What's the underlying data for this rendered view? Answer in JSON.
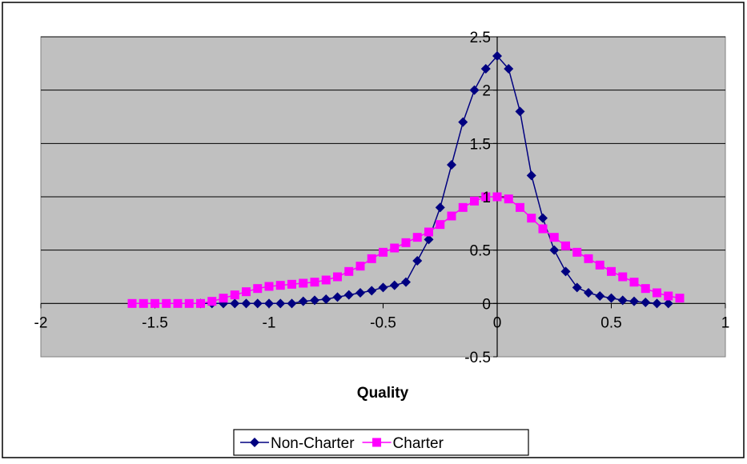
{
  "chart_data": {
    "type": "line",
    "title": "",
    "xlabel": "Quality",
    "ylabel": "",
    "xlim": [
      -2,
      1
    ],
    "ylim": [
      -0.5,
      2.5
    ],
    "x_ticks": [
      "-2",
      "-1.5",
      "-1",
      "-0.5",
      "0",
      "0.5",
      "1"
    ],
    "y_ticks": [
      "-0.5",
      "0",
      "0.5",
      "1",
      "1.5",
      "2",
      "2.5"
    ],
    "x_tick_values": [
      -2,
      -1.5,
      -1,
      -0.5,
      0,
      0.5,
      1
    ],
    "y_tick_values": [
      -0.5,
      0,
      0.5,
      1,
      1.5,
      2,
      2.5
    ],
    "grid": "horizontal major gridlines",
    "plot_background": "#C0C0C0",
    "legend_position": "bottom",
    "series": [
      {
        "name": "Non-Charter",
        "color": "#000080",
        "marker": "diamond",
        "x": [
          -1.3,
          -1.25,
          -1.2,
          -1.15,
          -1.1,
          -1.05,
          -1.0,
          -0.95,
          -0.9,
          -0.85,
          -0.8,
          -0.75,
          -0.7,
          -0.65,
          -0.6,
          -0.55,
          -0.5,
          -0.45,
          -0.4,
          -0.35,
          -0.3,
          -0.25,
          -0.2,
          -0.15,
          -0.1,
          -0.05,
          0.0,
          0.05,
          0.1,
          0.15,
          0.2,
          0.25,
          0.3,
          0.35,
          0.4,
          0.45,
          0.5,
          0.55,
          0.6,
          0.65,
          0.7,
          0.75
        ],
        "y": [
          0.0,
          0.0,
          0.0,
          0.0,
          0.0,
          0.0,
          0.0,
          0.0,
          0.0,
          0.02,
          0.03,
          0.04,
          0.06,
          0.08,
          0.1,
          0.12,
          0.15,
          0.17,
          0.2,
          0.4,
          0.6,
          0.9,
          1.3,
          1.7,
          2.0,
          2.2,
          2.32,
          2.2,
          1.8,
          1.2,
          0.8,
          0.5,
          0.3,
          0.15,
          0.1,
          0.07,
          0.05,
          0.03,
          0.02,
          0.01,
          0.0,
          0.0
        ]
      },
      {
        "name": "Charter",
        "color": "#FF00FF",
        "marker": "square",
        "x": [
          -1.6,
          -1.55,
          -1.5,
          -1.45,
          -1.4,
          -1.35,
          -1.3,
          -1.25,
          -1.2,
          -1.15,
          -1.1,
          -1.05,
          -1.0,
          -0.95,
          -0.9,
          -0.85,
          -0.8,
          -0.75,
          -0.7,
          -0.65,
          -0.6,
          -0.55,
          -0.5,
          -0.45,
          -0.4,
          -0.35,
          -0.3,
          -0.25,
          -0.2,
          -0.15,
          -0.1,
          -0.05,
          0.0,
          0.05,
          0.1,
          0.15,
          0.2,
          0.25,
          0.3,
          0.35,
          0.4,
          0.45,
          0.5,
          0.55,
          0.6,
          0.65,
          0.7,
          0.75,
          0.8
        ],
        "y": [
          0.0,
          0.0,
          0.0,
          0.0,
          0.0,
          0.0,
          0.0,
          0.02,
          0.05,
          0.08,
          0.11,
          0.14,
          0.16,
          0.17,
          0.18,
          0.19,
          0.2,
          0.22,
          0.25,
          0.3,
          0.35,
          0.42,
          0.48,
          0.52,
          0.57,
          0.62,
          0.67,
          0.74,
          0.82,
          0.9,
          0.96,
          1.0,
          1.0,
          0.98,
          0.9,
          0.8,
          0.7,
          0.62,
          0.54,
          0.48,
          0.42,
          0.36,
          0.3,
          0.25,
          0.2,
          0.14,
          0.1,
          0.07,
          0.05
        ]
      }
    ]
  }
}
